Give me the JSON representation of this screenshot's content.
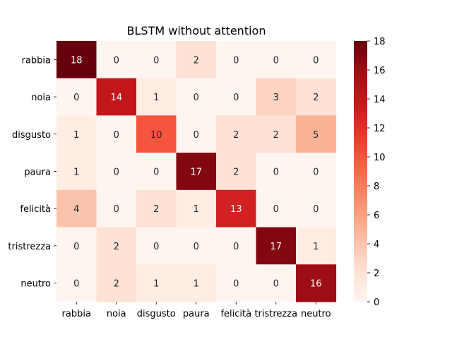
{
  "chart_data": {
    "type": "heatmap",
    "title": "BLSTM without attention",
    "xlabel": "",
    "ylabel": "",
    "x_categories": [
      "rabbia",
      "noia",
      "disgusto",
      "paura",
      "felicità",
      "tristrezza",
      "neutro"
    ],
    "y_categories": [
      "rabbia",
      "noia",
      "disgusto",
      "paura",
      "felicità",
      "tristrezza",
      "neutro"
    ],
    "values": [
      [
        18,
        0,
        0,
        2,
        0,
        0,
        0
      ],
      [
        0,
        14,
        1,
        0,
        0,
        3,
        2
      ],
      [
        1,
        0,
        10,
        0,
        2,
        2,
        5
      ],
      [
        1,
        0,
        0,
        17,
        2,
        0,
        0
      ],
      [
        4,
        0,
        2,
        1,
        13,
        0,
        0
      ],
      [
        0,
        2,
        0,
        0,
        0,
        17,
        1
      ],
      [
        0,
        2,
        1,
        1,
        0,
        0,
        16
      ]
    ],
    "colorscale": "Reds",
    "color_range": [
      0,
      18
    ],
    "colorbar_ticks": [
      0,
      2,
      4,
      6,
      8,
      10,
      12,
      14,
      16,
      18
    ],
    "annotations_shown": true,
    "grid": false
  }
}
